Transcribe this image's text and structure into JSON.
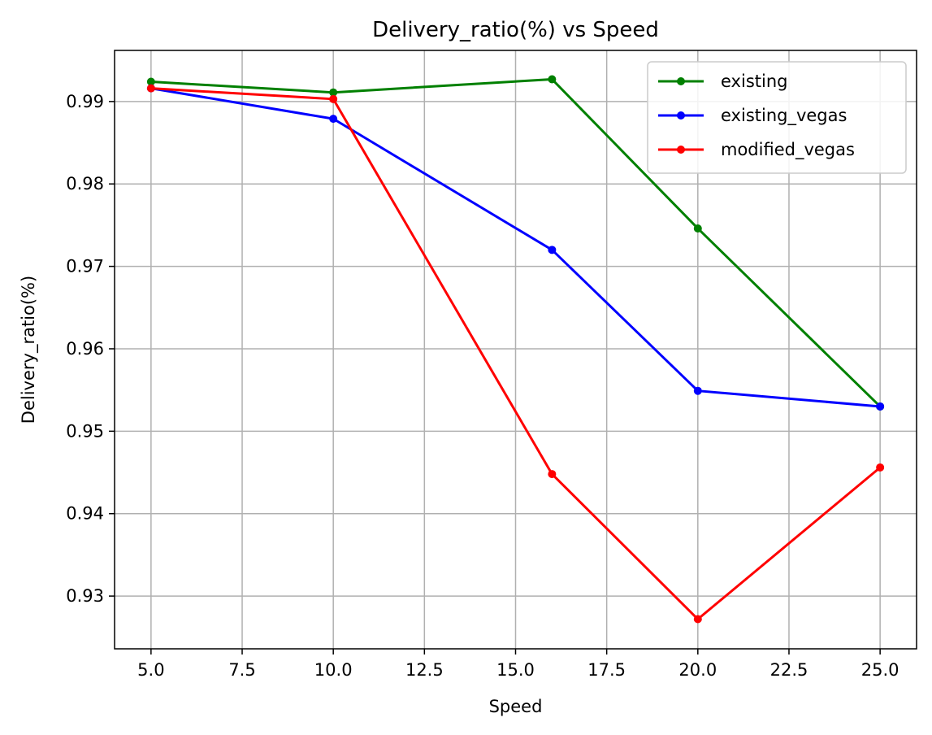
{
  "chart_data": {
    "type": "line",
    "title": "Delivery_ratio(%) vs Speed",
    "xlabel": "Speed",
    "ylabel": "Delivery_ratio(%)",
    "xlim": [
      4.0,
      26.0
    ],
    "ylim": [
      0.9236,
      0.9962
    ],
    "xticks": [
      5.0,
      7.5,
      10.0,
      12.5,
      15.0,
      17.5,
      20.0,
      22.5,
      25.0
    ],
    "xtick_labels": [
      "5.0",
      "7.5",
      "10.0",
      "12.5",
      "15.0",
      "17.5",
      "20.0",
      "22.5",
      "25.0"
    ],
    "yticks": [
      0.93,
      0.94,
      0.95,
      0.96,
      0.97,
      0.98,
      0.99
    ],
    "ytick_labels": [
      "0.93",
      "0.94",
      "0.95",
      "0.96",
      "0.97",
      "0.98",
      "0.99"
    ],
    "grid": true,
    "legend_position": "top-right",
    "x": [
      5,
      10,
      16,
      20,
      25
    ],
    "series": [
      {
        "name": "existing",
        "color": "#008000",
        "values": [
          0.9924,
          0.9911,
          0.9927,
          0.9746,
          0.953
        ]
      },
      {
        "name": "existing_vegas",
        "color": "#0000ff",
        "values": [
          0.9916,
          0.9879,
          0.972,
          0.9549,
          0.953
        ]
      },
      {
        "name": "modified_vegas",
        "color": "#ff0000",
        "values": [
          0.9916,
          0.9903,
          0.9448,
          0.9272,
          0.9456
        ]
      }
    ]
  }
}
